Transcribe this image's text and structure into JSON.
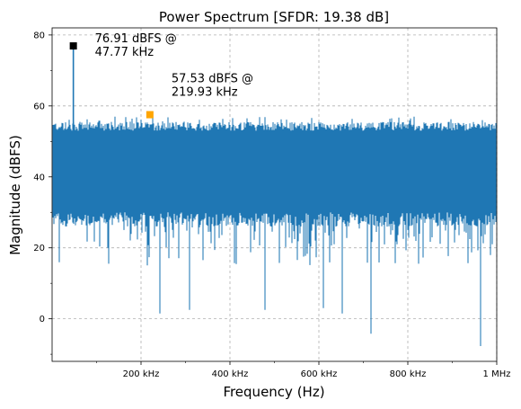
{
  "chart_data": {
    "type": "line",
    "title": "Power Spectrum [SFDR: 19.38 dB]",
    "xlabel": "Frequency (Hz)",
    "ylabel": "Magnitude (dBFS)",
    "xlim": [
      0,
      1000000
    ],
    "ylim": [
      -12,
      82
    ],
    "xticks": [
      {
        "value": 200000,
        "label": "200 kHz"
      },
      {
        "value": 400000,
        "label": "400 kHz"
      },
      {
        "value": 600000,
        "label": "600 kHz"
      },
      {
        "value": 800000,
        "label": "800 kHz"
      },
      {
        "value": 1000000,
        "label": "1 MHz"
      }
    ],
    "yticks": [
      {
        "value": 0,
        "label": "0"
      },
      {
        "value": 20,
        "label": "20"
      },
      {
        "value": 40,
        "label": "40"
      },
      {
        "value": 60,
        "label": "60"
      },
      {
        "value": 80,
        "label": "80"
      }
    ],
    "grid": true,
    "noise_floor": {
      "low": 28,
      "high": 54,
      "typical_min": 15,
      "typical_max": 57
    },
    "deep_dips": [
      {
        "x": 243000,
        "y": 1.5
      },
      {
        "x": 310000,
        "y": 2.5
      },
      {
        "x": 478000,
        "y": 2.5
      },
      {
        "x": 610000,
        "y": 3
      },
      {
        "x": 652000,
        "y": 1.5
      },
      {
        "x": 718000,
        "y": -4.2
      },
      {
        "x": 964000,
        "y": -7.7
      }
    ],
    "peaks": [
      {
        "x": 47770,
        "y": 76.91,
        "label_line1": "76.91 dBFS @",
        "label_line2": "47.77 kHz",
        "color": "#000000"
      },
      {
        "x": 219930,
        "y": 57.53,
        "label_line1": "57.53 dBFS @",
        "label_line2": "219.93 kHz",
        "color": "#ffa500"
      }
    ],
    "series_color": "#1f77b4",
    "grid_color": "#b0b0b0"
  }
}
